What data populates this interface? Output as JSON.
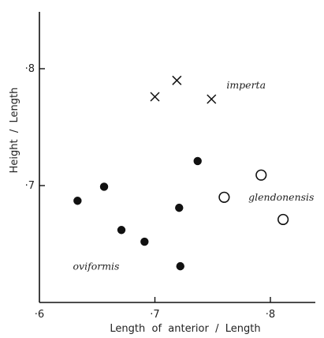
{
  "chart_data": {
    "type": "scatter",
    "title": "",
    "xlabel": "Length  of  anterior  /  Length",
    "ylabel": "Height  /  Length",
    "xlim": [
      0.6,
      0.845
    ],
    "ylim": [
      0.6,
      0.85
    ],
    "x_ticks": [
      {
        "value": 0.6,
        "label": "·6"
      },
      {
        "value": 0.7,
        "label": "·7"
      },
      {
        "value": 0.8,
        "label": "·8"
      }
    ],
    "y_ticks": [
      {
        "value": 0.7,
        "label": "·7"
      },
      {
        "value": 0.8,
        "label": "·8"
      }
    ],
    "grid": false,
    "legend": "none",
    "series": [
      {
        "name": "imperta",
        "marker": "cross",
        "x": [
          0.7,
          0.719,
          0.749
        ],
        "y": [
          0.776,
          0.79,
          0.774
        ]
      },
      {
        "name": "oviformis",
        "marker": "filled-circle",
        "x": [
          0.633,
          0.656,
          0.671,
          0.691,
          0.721,
          0.722,
          0.737
        ],
        "y": [
          0.687,
          0.699,
          0.662,
          0.652,
          0.681,
          0.631,
          0.721
        ]
      },
      {
        "name": "glendonensis",
        "marker": "open-circle",
        "x": [
          0.76,
          0.792,
          0.811
        ],
        "y": [
          0.69,
          0.709,
          0.671
        ]
      }
    ],
    "annotations": [
      {
        "text": "imperta",
        "x": 0.762,
        "y": 0.783
      },
      {
        "text": "glendonensis",
        "x": 0.781,
        "y": 0.687
      },
      {
        "text": "oviformis",
        "x": 0.629,
        "y": 0.628
      }
    ]
  }
}
